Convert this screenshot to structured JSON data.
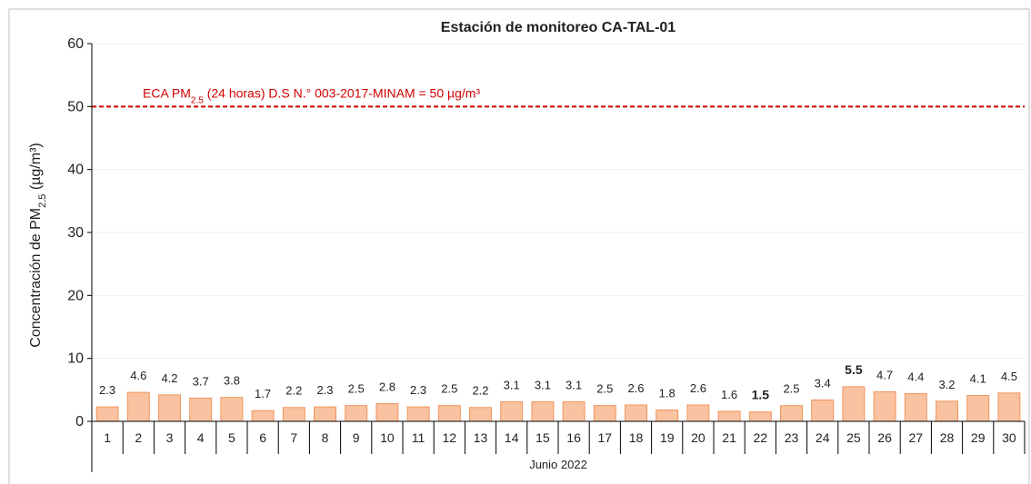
{
  "chart_data": {
    "type": "bar",
    "title": "Estación de monitoreo CA-TAL-01",
    "y_label": {
      "prefix": "Concentración de PM",
      "sub": "2.5",
      "suffix": " (µg/m³)"
    },
    "x_label": "Junio 2022",
    "categories": [
      "1",
      "2",
      "3",
      "4",
      "5",
      "6",
      "7",
      "8",
      "9",
      "10",
      "11",
      "12",
      "13",
      "14",
      "15",
      "16",
      "17",
      "18",
      "19",
      "20",
      "21",
      "22",
      "23",
      "24",
      "25",
      "26",
      "27",
      "28",
      "29",
      "30"
    ],
    "values": [
      2.3,
      4.6,
      4.2,
      3.7,
      3.8,
      1.7,
      2.2,
      2.3,
      2.5,
      2.8,
      2.3,
      2.5,
      2.2,
      3.1,
      3.1,
      3.1,
      2.5,
      2.6,
      1.8,
      2.6,
      1.6,
      1.5,
      2.5,
      3.4,
      5.5,
      4.7,
      4.4,
      3.2,
      4.1,
      4.5
    ],
    "color": "#f9c2a0",
    "edge_color": "#f0955e",
    "ylim": [
      0,
      60
    ],
    "yticks": [
      0,
      10,
      20,
      30,
      40,
      50,
      60
    ],
    "grid": true,
    "reference_line": {
      "value": 50,
      "color": "#d00000",
      "label": {
        "prefix": "ECA PM",
        "sub": "2.5",
        "suffix": " (24 horas) D.S N.° 003-2017-MINAM = 50 µg/m³"
      }
    }
  }
}
